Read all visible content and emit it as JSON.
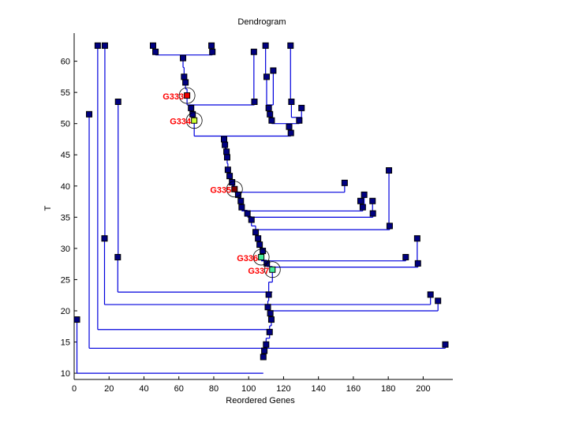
{
  "chart_data": {
    "type": "dendrogram",
    "title": "Dendrogram",
    "xlabel": "Reordered Genes",
    "ylabel": "T",
    "xlim": [
      0,
      217
    ],
    "ylim": [
      9,
      64.5
    ],
    "xticks": [
      "0",
      "20",
      "40",
      "60",
      "80",
      "100",
      "120",
      "140",
      "160",
      "180",
      "200"
    ],
    "xtick_values": [
      0,
      20,
      40,
      60,
      80,
      100,
      120,
      140,
      160,
      180,
      200
    ],
    "yticks": [
      "10",
      "15",
      "20",
      "25",
      "30",
      "35",
      "40",
      "45",
      "50",
      "55",
      "60"
    ],
    "ytick_values": [
      10,
      15,
      20,
      25,
      30,
      35,
      40,
      45,
      50,
      55,
      60
    ],
    "colors": {
      "line": "#0000dd",
      "node": "#000080",
      "highlight_red": "#ee0000",
      "highlight_dark_red": "#800000",
      "highlight_lime": "#ccff33",
      "highlight_aqua": "#44ee99",
      "annotation": "#ff0000"
    },
    "nodes": [
      {
        "id": "a1",
        "x": 45.2,
        "y": 62.5
      },
      {
        "id": "a2",
        "x": 46.6,
        "y": 61.5
      },
      {
        "id": "a3",
        "x": 78.7,
        "y": 62.5
      },
      {
        "id": "a4",
        "x": 79.2,
        "y": 61.5
      },
      {
        "id": "a5",
        "x": 62.4,
        "y": 60.5
      },
      {
        "id": "a6",
        "x": 63.0,
        "y": 57.5
      },
      {
        "id": "a7",
        "x": 63.8,
        "y": 56.6
      },
      {
        "id": "G333",
        "x": 64.7,
        "y": 54.5,
        "label": "G333",
        "color": "#ee0000"
      },
      {
        "id": "b1",
        "x": 103.0,
        "y": 61.5
      },
      {
        "id": "b2",
        "x": 103.3,
        "y": 53.5
      },
      {
        "id": "a8",
        "x": 67.0,
        "y": 52.5
      },
      {
        "id": "a9",
        "x": 67.9,
        "y": 51.5
      },
      {
        "id": "G334",
        "x": 68.8,
        "y": 50.5,
        "label": "G334",
        "color": "#ccff33"
      },
      {
        "id": "c1",
        "x": 109.7,
        "y": 62.5
      },
      {
        "id": "c2",
        "x": 110.3,
        "y": 57.5
      },
      {
        "id": "c3",
        "x": 114.1,
        "y": 58.5
      },
      {
        "id": "c4",
        "x": 111.5,
        "y": 52.5
      },
      {
        "id": "c5",
        "x": 112.2,
        "y": 51.5
      },
      {
        "id": "c6",
        "x": 113.2,
        "y": 50.5
      },
      {
        "id": "c7",
        "x": 124.0,
        "y": 62.5
      },
      {
        "id": "c8",
        "x": 124.5,
        "y": 53.5
      },
      {
        "id": "c9",
        "x": 130.3,
        "y": 52.5
      },
      {
        "id": "c10",
        "x": 129.0,
        "y": 50.5
      },
      {
        "id": "c11",
        "x": 123.2,
        "y": 49.5
      },
      {
        "id": "c12",
        "x": 124.2,
        "y": 48.5
      },
      {
        "id": "d1",
        "x": 85.9,
        "y": 47.5
      },
      {
        "id": "d2",
        "x": 86.4,
        "y": 46.6
      },
      {
        "id": "d3",
        "x": 87.3,
        "y": 45.5
      },
      {
        "id": "d4",
        "x": 87.7,
        "y": 44.6
      },
      {
        "id": "d5",
        "x": 88.1,
        "y": 42.6
      },
      {
        "id": "d6",
        "x": 89.1,
        "y": 41.6
      },
      {
        "id": "d7",
        "x": 90.5,
        "y": 40.6
      },
      {
        "id": "G335",
        "x": 91.9,
        "y": 39.5,
        "label": "G335",
        "color": "#800000"
      },
      {
        "id": "e1",
        "x": 155.0,
        "y": 40.5
      },
      {
        "id": "d8",
        "x": 94.0,
        "y": 38.6
      },
      {
        "id": "d9",
        "x": 95.5,
        "y": 37.6
      },
      {
        "id": "d10",
        "x": 96.0,
        "y": 36.6
      },
      {
        "id": "e2",
        "x": 166.2,
        "y": 38.6
      },
      {
        "id": "e3",
        "x": 164.1,
        "y": 37.6
      },
      {
        "id": "e4",
        "x": 171.0,
        "y": 37.6
      },
      {
        "id": "e5",
        "x": 165.4,
        "y": 36.6
      },
      {
        "id": "e6",
        "x": 171.2,
        "y": 35.6
      },
      {
        "id": "d11",
        "x": 99.3,
        "y": 35.6
      },
      {
        "id": "d12",
        "x": 101.6,
        "y": 34.6
      },
      {
        "id": "f1",
        "x": 180.4,
        "y": 42.5
      },
      {
        "id": "f2",
        "x": 180.8,
        "y": 33.6
      },
      {
        "id": "d13",
        "x": 104.0,
        "y": 32.6
      },
      {
        "id": "d14",
        "x": 105.4,
        "y": 31.6
      },
      {
        "id": "d15",
        "x": 106.3,
        "y": 30.6
      },
      {
        "id": "d16",
        "x": 108.1,
        "y": 29.6
      },
      {
        "id": "G336",
        "x": 107.2,
        "y": 28.6,
        "label": "G336",
        "color": "#44ee99"
      },
      {
        "id": "g1",
        "x": 190.0,
        "y": 28.6
      },
      {
        "id": "g2",
        "x": 196.6,
        "y": 31.6
      },
      {
        "id": "g3",
        "x": 197.0,
        "y": 27.6
      },
      {
        "id": "d17",
        "x": 110.4,
        "y": 27.6
      },
      {
        "id": "G337",
        "x": 113.6,
        "y": 26.6,
        "label": "G337",
        "color": "#44ee99"
      },
      {
        "id": "h1",
        "x": 25.2,
        "y": 53.5
      },
      {
        "id": "h2",
        "x": 25.0,
        "y": 28.6
      },
      {
        "id": "d18",
        "x": 111.5,
        "y": 22.6
      },
      {
        "id": "i1",
        "x": 17.6,
        "y": 62.5
      },
      {
        "id": "i2",
        "x": 17.4,
        "y": 31.6
      },
      {
        "id": "i3",
        "x": 204.2,
        "y": 22.6
      },
      {
        "id": "i4",
        "x": 208.5,
        "y": 21.6
      },
      {
        "id": "d19",
        "x": 111.0,
        "y": 20.6
      },
      {
        "id": "d20",
        "x": 112.4,
        "y": 19.6
      },
      {
        "id": "d21",
        "x": 113.0,
        "y": 18.6
      },
      {
        "id": "j1",
        "x": 13.5,
        "y": 62.5
      },
      {
        "id": "d22",
        "x": 112.0,
        "y": 16.6
      },
      {
        "id": "k1",
        "x": 8.6,
        "y": 51.5
      },
      {
        "id": "k2",
        "x": 212.7,
        "y": 14.6
      },
      {
        "id": "d23",
        "x": 110.0,
        "y": 14.6
      },
      {
        "id": "d24",
        "x": 109.0,
        "y": 13.6
      },
      {
        "id": "l1",
        "x": 1.6,
        "y": 18.6
      },
      {
        "id": "d25",
        "x": 108.4,
        "y": 12.6
      }
    ],
    "merges": [
      {
        "left_x": 46.6,
        "right_x": 79.2,
        "y": 61.0,
        "from": [
          "a1",
          "a2",
          "a3",
          "a4"
        ],
        "stem_x": 62.4,
        "to_y": 60.5
      },
      {
        "left_x": 64.7,
        "right_x": 103.3,
        "y": 53.0,
        "stem_x": 67.0
      },
      {
        "left_x": 113.2,
        "right_x": 129.0,
        "y": 50.0,
        "stem_x": 123.2
      },
      {
        "left_x": 68.8,
        "right_x": 124.2,
        "y": 48.0,
        "stem_x": 85.9
      },
      {
        "left_x": 91.9,
        "right_x": 155.0,
        "y": 39.0
      },
      {
        "left_x": 96.0,
        "right_x": 165.4,
        "y": 36.0
      },
      {
        "left_x": 99.3,
        "right_x": 171.2,
        "y": 35.0
      },
      {
        "left_x": 104.0,
        "right_x": 180.8,
        "y": 33.0
      },
      {
        "left_x": 107.2,
        "right_x": 190.0,
        "y": 28.0
      },
      {
        "left_x": 113.6,
        "right_x": 197.0,
        "y": 27.0
      },
      {
        "left_x": 25.0,
        "right_x": 113.6,
        "y": 23.0
      },
      {
        "left_x": 17.4,
        "right_x": 204.2,
        "y": 21.0
      },
      {
        "left_x": 111.0,
        "right_x": 208.5,
        "y": 20.0
      },
      {
        "left_x": 13.5,
        "right_x": 112.0,
        "y": 17.0
      },
      {
        "left_x": 8.6,
        "right_x": 212.7,
        "y": 14.0
      },
      {
        "left_x": 1.6,
        "right_x": 108.4,
        "y": 10.0
      }
    ]
  }
}
